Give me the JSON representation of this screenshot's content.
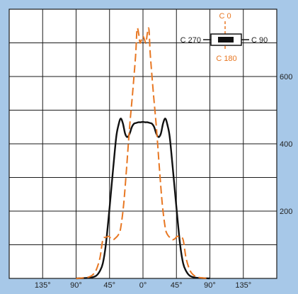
{
  "chart_data": {
    "type": "line",
    "title": "",
    "xlabel": "",
    "ylabel": "",
    "x_ticks": [
      "135°",
      "90°",
      "45°",
      "0°",
      "45°",
      "90°",
      "135°"
    ],
    "x_tick_values": [
      -135,
      -90,
      -45,
      0,
      45,
      90,
      135
    ],
    "xlim": [
      -180,
      180
    ],
    "y_ticks": [
      "200",
      "400",
      "600"
    ],
    "y_tick_values": [
      200,
      400,
      600
    ],
    "ylim": [
      0,
      800
    ],
    "grid": true,
    "legend": {
      "placement": "top-right",
      "labels": {
        "top": "C 0",
        "bottom": "C 180",
        "left": "C 270",
        "right": "C 90"
      }
    },
    "series": [
      {
        "color": "#111111",
        "style": "solid",
        "x": [
          -90,
          -72,
          -63,
          -58,
          -54,
          -50,
          -45,
          -40,
          -36,
          -33,
          -30,
          -27,
          -24,
          -21,
          -18,
          -15,
          -12,
          -9,
          -6,
          -3,
          0,
          3,
          6,
          9,
          12,
          15,
          18,
          21,
          24,
          27,
          30,
          33,
          36,
          40,
          45,
          50,
          54,
          58,
          63,
          72,
          90
        ],
        "y": [
          0,
          2,
          8,
          22,
          45,
          100,
          210,
          330,
          420,
          455,
          475,
          460,
          430,
          420,
          430,
          450,
          460,
          462,
          464,
          464,
          465,
          464,
          464,
          462,
          460,
          450,
          430,
          420,
          430,
          460,
          475,
          455,
          420,
          330,
          210,
          100,
          45,
          22,
          8,
          2,
          0
        ]
      },
      {
        "color": "#e87722",
        "style": "dashed",
        "x": [
          -90,
          -75,
          -68,
          -63,
          -58,
          -54,
          -50,
          -46,
          -43,
          -40,
          -37,
          -33,
          -30,
          -26,
          -22,
          -18,
          -14,
          -10,
          -8,
          -6,
          -4,
          -2,
          0,
          2,
          4,
          6,
          8,
          10,
          14,
          18,
          22,
          26,
          30,
          33,
          37,
          40,
          43,
          46,
          50,
          54,
          58,
          63,
          68,
          75,
          90
        ],
        "y": [
          0,
          3,
          10,
          25,
          60,
          115,
          122,
          125,
          118,
          115,
          120,
          130,
          150,
          220,
          330,
          450,
          550,
          660,
          740,
          730,
          700,
          710,
          720,
          710,
          700,
          730,
          740,
          660,
          550,
          450,
          330,
          220,
          150,
          130,
          120,
          115,
          118,
          125,
          122,
          115,
          60,
          25,
          10,
          3,
          0
        ]
      }
    ]
  }
}
